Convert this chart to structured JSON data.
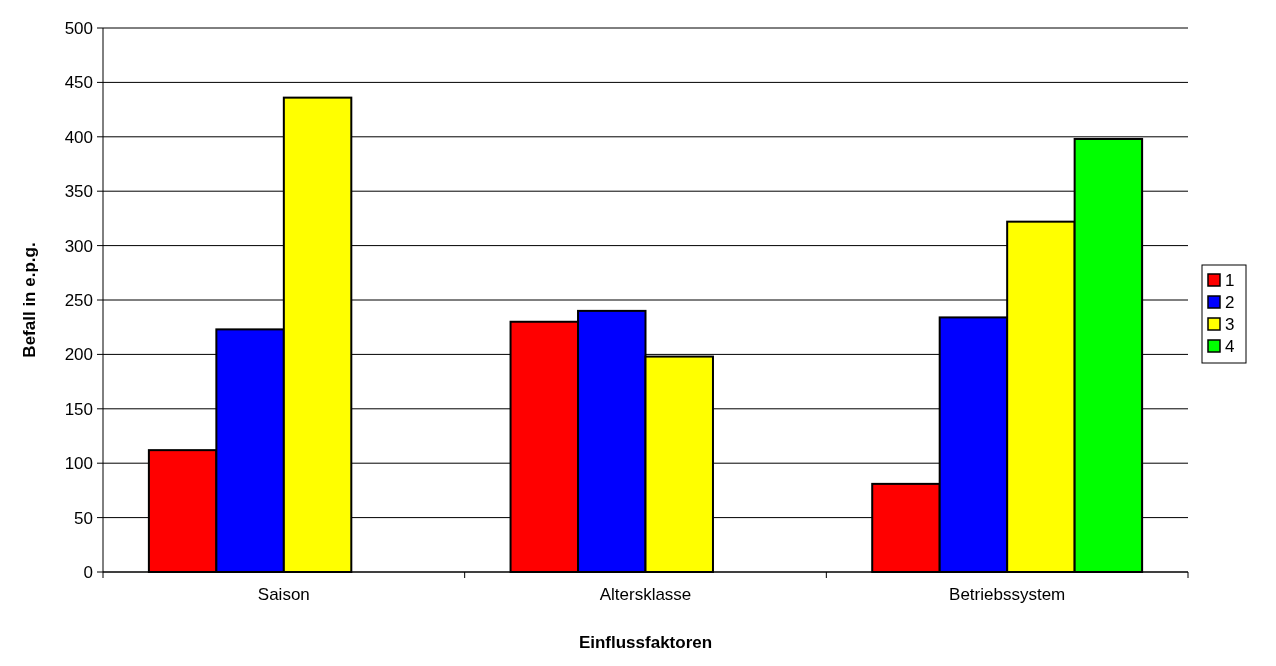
{
  "chart_data": {
    "type": "bar",
    "xlabel": "Einflussfaktoren",
    "ylabel": "Befall in e.p.g.",
    "categories": [
      "Saison",
      "Altersklasse",
      "Betriebssystem"
    ],
    "series": [
      {
        "name": "1",
        "color": "#ff0000",
        "values": [
          112,
          230,
          81
        ]
      },
      {
        "name": "2",
        "color": "#0000ff",
        "values": [
          223,
          240,
          234
        ]
      },
      {
        "name": "3",
        "color": "#ffff00",
        "values": [
          436,
          198,
          322
        ]
      },
      {
        "name": "4",
        "color": "#00ff00",
        "values": [
          null,
          null,
          398
        ]
      }
    ],
    "ylim": [
      0,
      500
    ],
    "yticks": [
      0,
      50,
      100,
      150,
      200,
      250,
      300,
      350,
      400,
      450,
      500
    ],
    "grid": "y",
    "legend": "right"
  }
}
